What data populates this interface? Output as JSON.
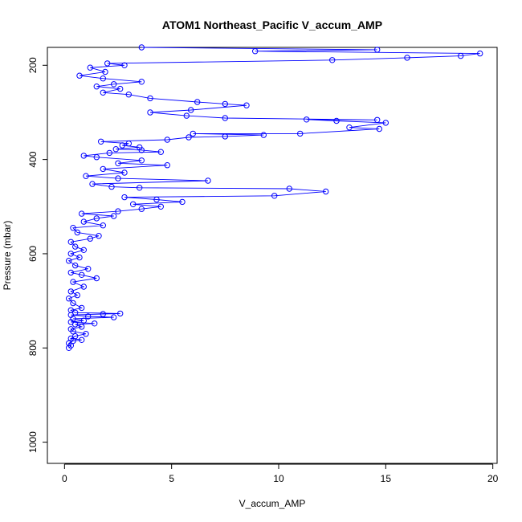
{
  "chart_data": {
    "type": "line",
    "title": "ATOM1 Northeast_Pacific V_accum_AMP",
    "xlabel": "V_accum_AMP",
    "ylabel": "Pressure (mbar)",
    "xlim": [
      -0.8,
      20.2
    ],
    "ylim": [
      1045,
      162
    ],
    "y_reversed": true,
    "x_ticks": [
      0,
      5,
      10,
      15,
      20
    ],
    "y_ticks": [
      200,
      400,
      600,
      800,
      1000
    ],
    "x_tick_labels": [
      "0",
      "5",
      "10",
      "15",
      "20"
    ],
    "y_tick_labels": [
      "200",
      "400",
      "600",
      "800",
      "1000"
    ],
    "grid": false,
    "legend": "none",
    "color": "#0000ff",
    "series": [
      {
        "name": "",
        "points": [
          [
            0.2,
            800
          ],
          [
            0.3,
            795
          ],
          [
            0.2,
            790
          ],
          [
            0.4,
            785
          ],
          [
            0.8,
            783
          ],
          [
            0.3,
            780
          ],
          [
            0.5,
            775
          ],
          [
            1.0,
            770
          ],
          [
            0.4,
            765
          ],
          [
            0.3,
            760
          ],
          [
            0.8,
            755
          ],
          [
            0.5,
            750
          ],
          [
            1.4,
            748
          ],
          [
            0.3,
            745
          ],
          [
            0.9,
            742
          ],
          [
            0.4,
            738
          ],
          [
            2.3,
            735
          ],
          [
            1.1,
            733
          ],
          [
            0.3,
            730
          ],
          [
            1.8,
            728
          ],
          [
            2.6,
            727
          ],
          [
            0.5,
            725
          ],
          [
            0.3,
            720
          ],
          [
            0.8,
            715
          ],
          [
            0.4,
            705
          ],
          [
            0.2,
            695
          ],
          [
            0.6,
            688
          ],
          [
            0.3,
            680
          ],
          [
            0.9,
            670
          ],
          [
            0.4,
            660
          ],
          [
            1.5,
            652
          ],
          [
            0.8,
            645
          ],
          [
            0.3,
            640
          ],
          [
            1.1,
            632
          ],
          [
            0.5,
            625
          ],
          [
            0.2,
            615
          ],
          [
            0.7,
            608
          ],
          [
            0.3,
            600
          ],
          [
            0.9,
            592
          ],
          [
            0.5,
            585
          ],
          [
            0.3,
            575
          ],
          [
            1.2,
            568
          ],
          [
            1.6,
            562
          ],
          [
            0.6,
            555
          ],
          [
            0.4,
            545
          ],
          [
            1.8,
            540
          ],
          [
            0.9,
            532
          ],
          [
            1.5,
            525
          ],
          [
            2.3,
            520
          ],
          [
            0.8,
            515
          ],
          [
            2.5,
            510
          ],
          [
            3.6,
            505
          ],
          [
            4.5,
            500
          ],
          [
            3.2,
            495
          ],
          [
            5.5,
            490
          ],
          [
            4.3,
            485
          ],
          [
            2.8,
            480
          ],
          [
            9.8,
            477
          ],
          [
            12.2,
            468
          ],
          [
            10.5,
            462
          ],
          [
            3.5,
            460
          ],
          [
            2.2,
            458
          ],
          [
            1.3,
            452
          ],
          [
            6.7,
            445
          ],
          [
            2.5,
            440
          ],
          [
            1.0,
            435
          ],
          [
            2.8,
            428
          ],
          [
            1.8,
            420
          ],
          [
            4.8,
            412
          ],
          [
            2.5,
            408
          ],
          [
            3.6,
            402
          ],
          [
            1.5,
            395
          ],
          [
            0.9,
            392
          ],
          [
            2.1,
            386
          ],
          [
            4.5,
            384
          ],
          [
            3.6,
            380
          ],
          [
            2.4,
            378
          ],
          [
            3.5,
            374
          ],
          [
            2.7,
            370
          ],
          [
            3.0,
            366
          ],
          [
            1.7,
            362
          ],
          [
            4.8,
            358
          ],
          [
            5.8,
            353
          ],
          [
            7.5,
            351
          ],
          [
            9.3,
            348
          ],
          [
            6.0,
            345
          ],
          [
            11.0,
            345
          ],
          [
            14.7,
            335
          ],
          [
            13.3,
            332
          ],
          [
            15.0,
            322
          ],
          [
            12.7,
            318
          ],
          [
            11.3,
            315
          ],
          [
            14.6,
            316
          ],
          [
            7.5,
            312
          ],
          [
            5.7,
            307
          ],
          [
            4.0,
            300
          ],
          [
            5.9,
            295
          ],
          [
            8.5,
            285
          ],
          [
            7.5,
            282
          ],
          [
            6.2,
            278
          ],
          [
            4.0,
            270
          ],
          [
            3.0,
            262
          ],
          [
            1.8,
            258
          ],
          [
            2.6,
            250
          ],
          [
            1.5,
            245
          ],
          [
            2.3,
            240
          ],
          [
            3.6,
            235
          ],
          [
            1.8,
            228
          ],
          [
            0.7,
            222
          ],
          [
            1.9,
            214
          ],
          [
            1.2,
            205
          ],
          [
            2.8,
            200
          ],
          [
            2.0,
            196
          ],
          [
            12.5,
            189
          ],
          [
            16.0,
            184
          ],
          [
            18.5,
            180
          ],
          [
            19.4,
            175
          ],
          [
            8.9,
            170
          ],
          [
            14.6,
            167
          ],
          [
            3.6,
            162
          ]
        ]
      }
    ]
  }
}
